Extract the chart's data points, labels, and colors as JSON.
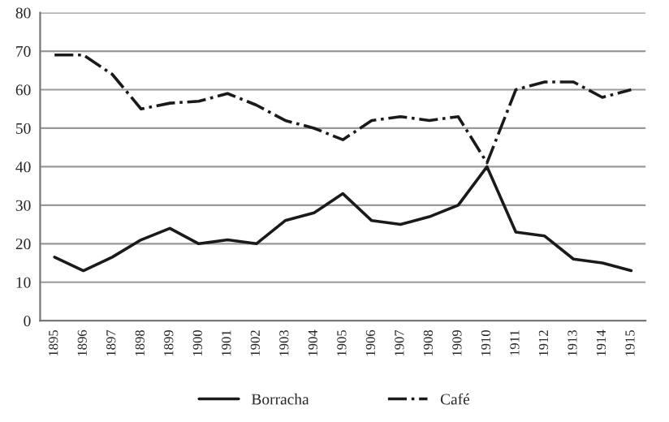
{
  "chart_data": {
    "type": "line",
    "categories": [
      "1895",
      "1896",
      "1897",
      "1898",
      "1899",
      "1900",
      "1901",
      "1902",
      "1903",
      "1904",
      "1905",
      "1906",
      "1907",
      "1908",
      "1909",
      "1910",
      "1911",
      "1912",
      "1913",
      "1914",
      "1915"
    ],
    "series": [
      {
        "name": "Borracha",
        "color": "#1a1a1a",
        "line_style": "solid",
        "values": [
          16.5,
          13,
          16.5,
          21,
          24,
          20,
          21,
          20,
          26,
          28,
          33,
          26,
          25,
          27,
          30,
          40,
          23,
          22,
          16,
          15,
          13
        ]
      },
      {
        "name": "Café",
        "color": "#1a1a1a",
        "line_style": "dashdot",
        "values": [
          69,
          69,
          64,
          55,
          56.5,
          57,
          59,
          56,
          52,
          50,
          47,
          52,
          53,
          52,
          53,
          41,
          60,
          62,
          62,
          58,
          60
        ]
      }
    ],
    "ylim": [
      0,
      80
    ],
    "yticks": [
      0,
      10,
      20,
      30,
      40,
      50,
      60,
      70,
      80
    ],
    "grid": "y",
    "legend": "bottom",
    "marker": "none"
  }
}
